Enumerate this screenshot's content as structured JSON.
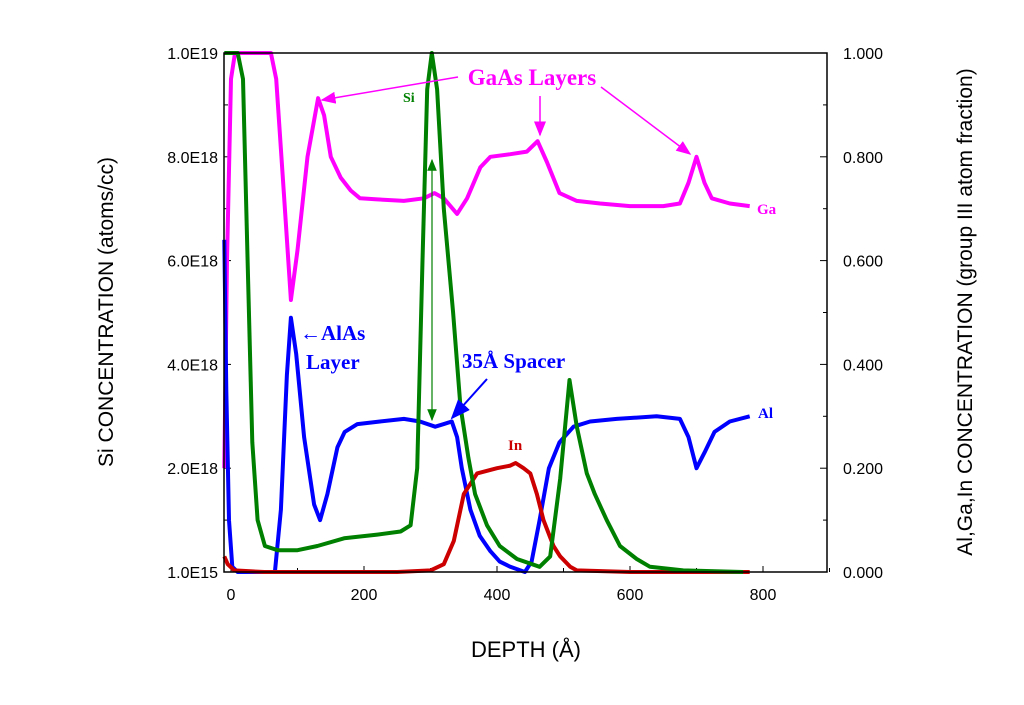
{
  "chart_data": {
    "type": "line",
    "xlabel": "DEPTH (Å)",
    "ylabel_left": "Si CONCENTRATION (atoms/cc)",
    "ylabel_right": "Al,Ga,In CONCENTRATION (group III atom fraction)",
    "xlim": [
      -10,
      895
    ],
    "ylim_left": [
      0,
      10
    ],
    "ylim_right": [
      0,
      1
    ],
    "x_ticks": [
      "0",
      "200",
      "400",
      "600",
      "800"
    ],
    "x_tick_values": [
      0,
      200,
      400,
      600,
      800
    ],
    "y_left_ticks": [
      "1.0E15",
      "2.0E18",
      "4.0E18",
      "6.0E18",
      "8.0E18",
      "1.0E19"
    ],
    "y_left_tick_values": [
      0,
      2,
      4,
      6,
      8,
      10
    ],
    "y_right_ticks": [
      "0.000",
      "0.200",
      "0.400",
      "0.600",
      "0.800",
      "1.000"
    ],
    "y_right_tick_values": [
      0,
      0.2,
      0.4,
      0.6,
      0.8,
      1.0
    ],
    "series": [
      {
        "name": "Ga",
        "axis": "right",
        "color": "#ff00ff",
        "x": [
          -10,
          -6,
          0,
          6,
          15,
          40,
          60,
          68,
          80,
          90,
          100,
          115,
          131,
          140,
          150,
          165,
          180,
          194,
          220,
          260,
          290,
          306,
          320,
          340,
          355,
          375,
          390,
          420,
          445,
          461,
          475,
          494,
          520,
          555,
          600,
          650,
          675,
          688,
          700,
          712,
          723,
          750,
          780
        ],
        "y": [
          0.2,
          0.6,
          0.95,
          1.0,
          1.0,
          1.0,
          1.0,
          0.95,
          0.72,
          0.524,
          0.62,
          0.8,
          0.913,
          0.88,
          0.8,
          0.76,
          0.735,
          0.72,
          0.718,
          0.715,
          0.72,
          0.73,
          0.72,
          0.69,
          0.72,
          0.78,
          0.8,
          0.805,
          0.81,
          0.83,
          0.79,
          0.73,
          0.715,
          0.71,
          0.705,
          0.705,
          0.71,
          0.75,
          0.8,
          0.75,
          0.72,
          0.71,
          0.705
        ]
      },
      {
        "name": "Al",
        "axis": "right",
        "color": "#0000ff",
        "x": [
          -10,
          -7,
          -3,
          2,
          10,
          40,
          66,
          75,
          84,
          90,
          98,
          110,
          125,
          134,
          145,
          160,
          171,
          190,
          224,
          260,
          284,
          307,
          320,
          332,
          340,
          347,
          360,
          374,
          390,
          404,
          420,
          442,
          452,
          464,
          478,
          494,
          515,
          540,
          580,
          640,
          675,
          688,
          700,
          712,
          727,
          750,
          780
        ],
        "y": [
          0.64,
          0.35,
          0.1,
          0.01,
          0.0,
          0.0,
          0.0,
          0.12,
          0.38,
          0.49,
          0.42,
          0.26,
          0.13,
          0.1,
          0.15,
          0.24,
          0.27,
          0.285,
          0.29,
          0.295,
          0.29,
          0.28,
          0.285,
          0.29,
          0.26,
          0.2,
          0.12,
          0.07,
          0.04,
          0.02,
          0.01,
          0.0,
          0.02,
          0.1,
          0.2,
          0.25,
          0.28,
          0.29,
          0.295,
          0.3,
          0.295,
          0.26,
          0.2,
          0.23,
          0.27,
          0.29,
          0.3
        ]
      },
      {
        "name": "In",
        "axis": "right",
        "color": "#cc0000",
        "x": [
          -10,
          -5,
          5,
          50,
          150,
          250,
          300,
          320,
          335,
          350,
          370,
          400,
          420,
          428,
          440,
          450,
          460,
          470,
          485,
          495,
          510,
          520,
          600,
          700,
          780
        ],
        "y": [
          0.03,
          0.015,
          0.003,
          0.0,
          0.0,
          0.0,
          0.003,
          0.015,
          0.06,
          0.15,
          0.19,
          0.2,
          0.205,
          0.21,
          0.2,
          0.19,
          0.15,
          0.1,
          0.05,
          0.03,
          0.01,
          0.003,
          0.0,
          0.0,
          0.0
        ]
      },
      {
        "name": "Si",
        "axis": "left",
        "color": "#008000",
        "x": [
          -10,
          10,
          18,
          25,
          32,
          40,
          51,
          70,
          100,
          130,
          170,
          220,
          255,
          270,
          280,
          288,
          295,
          302,
          310,
          320,
          334,
          345,
          357,
          367,
          385,
          404,
          430,
          464,
          480,
          495,
          509,
          520,
          535,
          547,
          565,
          585,
          610,
          630,
          680,
          770
        ],
        "y": [
          10,
          10,
          9.5,
          6,
          2.5,
          1.0,
          0.5,
          0.42,
          0.42,
          0.5,
          0.65,
          0.72,
          0.78,
          0.9,
          2,
          6,
          9.3,
          10,
          9.3,
          7,
          5.0,
          3.2,
          2.2,
          1.5,
          0.9,
          0.5,
          0.25,
          0.1,
          0.3,
          1.8,
          3.7,
          2.8,
          1.9,
          1.5,
          1.0,
          0.5,
          0.25,
          0.1,
          0.03,
          0.0
        ]
      }
    ],
    "annotations": {
      "gaas_layers": "GaAs Layers",
      "si_label": "Si",
      "alas_line1": "←AlAs",
      "alas_line2": "Layer",
      "spacer": "35Å Spacer",
      "in_label": "In",
      "ga_label": "Ga",
      "al_label": "Al"
    }
  }
}
